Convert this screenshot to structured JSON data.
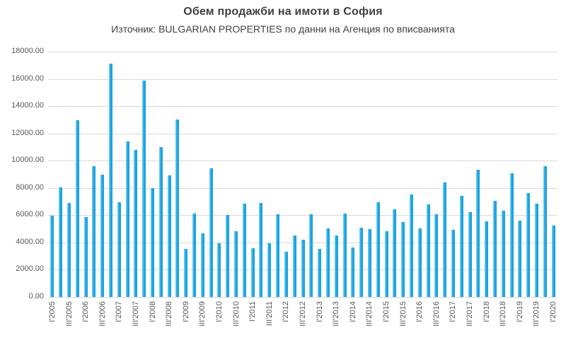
{
  "chart_data": {
    "type": "bar",
    "title": "Обем продажби на имоти в София",
    "subtitle": "Източник: BULGARIAN PROPERTIES по данни на Агенция по вписванията",
    "categories": [
      "I'2005",
      "II'2005",
      "III'2005",
      "IV'2005",
      "I'2006",
      "II'2006",
      "III'2006",
      "IV'2006",
      "I'2007",
      "II'2007",
      "III'2007",
      "IV'2007",
      "I'2008",
      "II'2008",
      "III'2008",
      "IV'2008",
      "I'2009",
      "II'2009",
      "III'2009",
      "IV'2009",
      "I'2010",
      "II'2010",
      "III'2010",
      "IV'2010",
      "I'2011",
      "II'2011",
      "III'2011",
      "IV'2011",
      "I'2012",
      "II'2012",
      "III'2012",
      "IV'2012",
      "I'2013",
      "II'2013",
      "III'2013",
      "IV'2013",
      "I'2014",
      "II'2014",
      "III'2014",
      "IV'2014",
      "I'2015",
      "II'2015",
      "III'2015",
      "IV'2015",
      "I'2016",
      "II'2016",
      "III'2016",
      "IV'2016",
      "I'2017",
      "II'2017",
      "III'2017",
      "IV'2017",
      "I'2018",
      "II'2018",
      "III'2018",
      "IV'2018",
      "I'2019",
      "II'2019",
      "III'2019",
      "IV'2019",
      "I'2020"
    ],
    "values": [
      5950,
      8050,
      6900,
      12950,
      5850,
      9600,
      8950,
      17100,
      6950,
      11400,
      10800,
      15850,
      8000,
      11000,
      8900,
      13000,
      3550,
      6100,
      4650,
      9450,
      3950,
      6000,
      4850,
      6850,
      3600,
      6900,
      3950,
      6050,
      3300,
      4500,
      4200,
      6050,
      3550,
      5050,
      4500,
      6100,
      3650,
      5100,
      5000,
      6950,
      4800,
      6450,
      5500,
      7500,
      5050,
      6800,
      6050,
      8400,
      4950,
      7400,
      6250,
      9350,
      5550,
      7050,
      6350,
      9100,
      5600,
      7650,
      6850,
      9600,
      5250
    ],
    "x_tick_labels": [
      "I'2005",
      "III'2005",
      "I'2006",
      "III'2006",
      "I'2007",
      "III'2007",
      "I'2008",
      "III'2008",
      "I'2009",
      "III'2009",
      "I'2010",
      "III'2010",
      "I'2011",
      "III'2011",
      "I'2012",
      "III'2012",
      "I'2013",
      "III'2013",
      "I'2014",
      "III'2014",
      "I'2015",
      "III'2015",
      "I'2016",
      "III'2016",
      "I'2017",
      "III'2017",
      "I'2018",
      "III'2018",
      "I'2019",
      "III'2019",
      "I'2020"
    ],
    "x_tick_step": 2,
    "y_ticks": [
      0,
      2000,
      4000,
      6000,
      8000,
      10000,
      12000,
      14000,
      16000,
      18000
    ],
    "y_tick_labels": [
      "0.00",
      "2000.00",
      "4000.00",
      "6000.00",
      "8000.00",
      "10000.00",
      "12000.00",
      "14000.00",
      "16000.00",
      "18000.00"
    ],
    "ylim": [
      0,
      18000
    ],
    "grid": true,
    "legend": "none",
    "bar_color": "#1ba3e2",
    "bar_highlight": "#7fd4f3",
    "gridline_color": "#d9d9d9",
    "axis_text_color": "#595959",
    "title_color": "#404040"
  }
}
